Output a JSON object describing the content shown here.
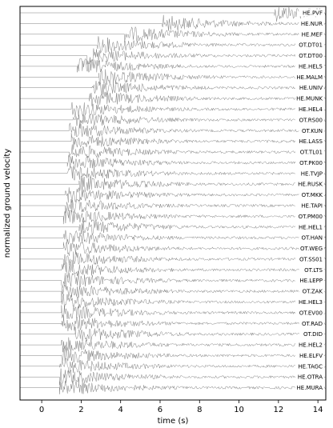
{
  "chart_data": {
    "type": "line",
    "xlabel": "time (s)",
    "ylabel": "normalized ground velocity",
    "xlim": [
      -1.1,
      14.4
    ],
    "xticks": [
      0,
      2,
      4,
      6,
      8,
      10,
      12,
      14
    ],
    "grid": false,
    "trace_color": "#808080",
    "stations": [
      {
        "name": "HE.PVF",
        "onset": 11.8
      },
      {
        "name": "HE.NUR",
        "onset": 6.1
      },
      {
        "name": "HE.MEF",
        "onset": 4.2
      },
      {
        "name": "OT.DT01",
        "onset": 2.8
      },
      {
        "name": "OT.DT00",
        "onset": 2.3
      },
      {
        "name": "HE.HEL5",
        "onset": 1.8
      },
      {
        "name": "HE.MALM",
        "onset": 2.9
      },
      {
        "name": "HE.UNIV",
        "onset": 2.5
      },
      {
        "name": "HE.MUNK",
        "onset": 2.4
      },
      {
        "name": "HE.HEL4",
        "onset": 1.5
      },
      {
        "name": "OT.RS00",
        "onset": 1.6
      },
      {
        "name": "OT.KUN",
        "onset": 1.4
      },
      {
        "name": "HE.LASS",
        "onset": 1.5
      },
      {
        "name": "OT.TL01",
        "onset": 1.4
      },
      {
        "name": "OT.PK00",
        "onset": 1.3
      },
      {
        "name": "HE.TVJP",
        "onset": 1.3
      },
      {
        "name": "HE.RUSK",
        "onset": 1.9
      },
      {
        "name": "OT.MKK",
        "onset": 1.2
      },
      {
        "name": "HE.TAPI",
        "onset": 1.2
      },
      {
        "name": "OT.PM00",
        "onset": 1.1
      },
      {
        "name": "HE.HEL1",
        "onset": 1.9
      },
      {
        "name": "OT.HAN",
        "onset": 1.1
      },
      {
        "name": "OT.WEG",
        "onset": 1.1
      },
      {
        "name": "OT.SS01",
        "onset": 1.1
      },
      {
        "name": "OT.LTS",
        "onset": 1.0
      },
      {
        "name": "HE.LEPP",
        "onset": 1.0
      },
      {
        "name": "OT.ZAK",
        "onset": 1.0
      },
      {
        "name": "HE.HEL3",
        "onset": 1.0
      },
      {
        "name": "OT.EV00",
        "onset": 1.0
      },
      {
        "name": "OT.RAD",
        "onset": 1.0
      },
      {
        "name": "OT.DID",
        "onset": 1.7
      },
      {
        "name": "HE.HEL2",
        "onset": 1.0
      },
      {
        "name": "HE.ELFV",
        "onset": 1.0
      },
      {
        "name": "HE.TAGC",
        "onset": 0.9
      },
      {
        "name": "HE.OTRA",
        "onset": 0.9
      },
      {
        "name": "HE.MURA",
        "onset": 0.9
      }
    ]
  }
}
